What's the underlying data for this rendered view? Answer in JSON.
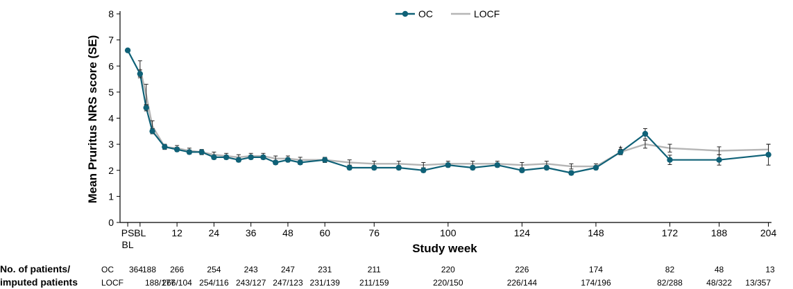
{
  "chart_data": {
    "type": "line",
    "xlabel": "Study week",
    "ylabel": "Mean Pruritus NRS score (SE)",
    "ylim": [
      0,
      8
    ],
    "yticks": [
      0,
      1,
      2,
      3,
      4,
      5,
      6,
      7,
      8
    ],
    "xticks": [
      {
        "label": "PS",
        "sublabel": "BL",
        "x": -4
      },
      {
        "label": "BL",
        "x": 0
      },
      {
        "label": "12",
        "x": 12
      },
      {
        "label": "24",
        "x": 24
      },
      {
        "label": "36",
        "x": 36
      },
      {
        "label": "48",
        "x": 48
      },
      {
        "label": "60",
        "x": 60
      },
      {
        "label": "76",
        "x": 76
      },
      {
        "label": "100",
        "x": 100
      },
      {
        "label": "124",
        "x": 124
      },
      {
        "label": "148",
        "x": 148
      },
      {
        "label": "172",
        "x": 172
      },
      {
        "label": "188",
        "x": 188
      },
      {
        "label": "204",
        "x": 204
      }
    ],
    "legend": {
      "placement": "top-center"
    },
    "annotations": [
      {
        "text": "*",
        "x": 156,
        "y": 2.85
      }
    ],
    "series": [
      {
        "name": "OC",
        "color": "#0f6177",
        "marker": "circle",
        "points": [
          {
            "x": -4,
            "y": 6.6,
            "se": 0.06
          },
          {
            "x": 0,
            "y": 5.7,
            "se": 0.15
          },
          {
            "x": 2,
            "y": 4.4,
            "se": 0.12
          },
          {
            "x": 4,
            "y": 3.5,
            "se": 0.1
          },
          {
            "x": 8,
            "y": 2.9,
            "se": 0.08
          },
          {
            "x": 12,
            "y": 2.8,
            "se": 0.08
          },
          {
            "x": 16,
            "y": 2.7,
            "se": 0.08
          },
          {
            "x": 20,
            "y": 2.7,
            "se": 0.08
          },
          {
            "x": 24,
            "y": 2.5,
            "se": 0.08
          },
          {
            "x": 28,
            "y": 2.5,
            "se": 0.08
          },
          {
            "x": 32,
            "y": 2.4,
            "se": 0.08
          },
          {
            "x": 36,
            "y": 2.5,
            "se": 0.08
          },
          {
            "x": 40,
            "y": 2.5,
            "se": 0.08
          },
          {
            "x": 44,
            "y": 2.3,
            "se": 0.08
          },
          {
            "x": 48,
            "y": 2.4,
            "se": 0.08
          },
          {
            "x": 52,
            "y": 2.3,
            "se": 0.08
          },
          {
            "x": 60,
            "y": 2.4,
            "se": 0.08
          },
          {
            "x": 68,
            "y": 2.1,
            "se": 0.08
          },
          {
            "x": 76,
            "y": 2.1,
            "se": 0.08
          },
          {
            "x": 84,
            "y": 2.1,
            "se": 0.08
          },
          {
            "x": 92,
            "y": 2.0,
            "se": 0.08
          },
          {
            "x": 100,
            "y": 2.2,
            "se": 0.08
          },
          {
            "x": 108,
            "y": 2.1,
            "se": 0.08
          },
          {
            "x": 116,
            "y": 2.2,
            "se": 0.08
          },
          {
            "x": 124,
            "y": 2.0,
            "se": 0.08
          },
          {
            "x": 132,
            "y": 2.1,
            "se": 0.08
          },
          {
            "x": 140,
            "y": 1.9,
            "se": 0.08
          },
          {
            "x": 148,
            "y": 2.1,
            "se": 0.08
          },
          {
            "x": 156,
            "y": 2.7,
            "se": 0.1
          },
          {
            "x": 164,
            "y": 3.4,
            "se": 0.2
          },
          {
            "x": 172,
            "y": 2.4,
            "se": 0.18
          },
          {
            "x": 188,
            "y": 2.4,
            "se": 0.2
          },
          {
            "x": 204,
            "y": 2.6,
            "se": 0.4
          }
        ]
      },
      {
        "name": "LOCF",
        "color": "#b5b5b5",
        "marker": "none",
        "points": [
          {
            "x": 0,
            "y": 5.9,
            "se": 0.3
          },
          {
            "x": 2,
            "y": 4.9,
            "se": 0.4
          },
          {
            "x": 4,
            "y": 3.7,
            "se": 0.2
          },
          {
            "x": 8,
            "y": 2.9,
            "se": 0.1
          },
          {
            "x": 12,
            "y": 2.85,
            "se": 0.1
          },
          {
            "x": 16,
            "y": 2.75,
            "se": 0.1
          },
          {
            "x": 20,
            "y": 2.7,
            "se": 0.1
          },
          {
            "x": 24,
            "y": 2.6,
            "se": 0.1
          },
          {
            "x": 28,
            "y": 2.55,
            "se": 0.1
          },
          {
            "x": 32,
            "y": 2.5,
            "se": 0.1
          },
          {
            "x": 36,
            "y": 2.55,
            "se": 0.1
          },
          {
            "x": 40,
            "y": 2.55,
            "se": 0.1
          },
          {
            "x": 44,
            "y": 2.45,
            "se": 0.1
          },
          {
            "x": 48,
            "y": 2.45,
            "se": 0.1
          },
          {
            "x": 52,
            "y": 2.4,
            "se": 0.1
          },
          {
            "x": 60,
            "y": 2.4,
            "se": 0.1
          },
          {
            "x": 68,
            "y": 2.3,
            "se": 0.1
          },
          {
            "x": 76,
            "y": 2.25,
            "se": 0.1
          },
          {
            "x": 84,
            "y": 2.25,
            "se": 0.1
          },
          {
            "x": 92,
            "y": 2.2,
            "se": 0.1
          },
          {
            "x": 100,
            "y": 2.25,
            "se": 0.1
          },
          {
            "x": 108,
            "y": 2.25,
            "se": 0.1
          },
          {
            "x": 116,
            "y": 2.25,
            "se": 0.1
          },
          {
            "x": 124,
            "y": 2.2,
            "se": 0.1
          },
          {
            "x": 132,
            "y": 2.25,
            "se": 0.1
          },
          {
            "x": 140,
            "y": 2.15,
            "se": 0.1
          },
          {
            "x": 148,
            "y": 2.15,
            "se": 0.1
          },
          {
            "x": 156,
            "y": 2.7,
            "se": 0.1
          },
          {
            "x": 164,
            "y": 3.0,
            "se": 0.15
          },
          {
            "x": 172,
            "y": 2.85,
            "se": 0.15
          },
          {
            "x": 188,
            "y": 2.75,
            "se": 0.15
          },
          {
            "x": 204,
            "y": 2.8,
            "se": 0.2
          }
        ]
      }
    ]
  },
  "patients_table": {
    "header_line1": "No. of patients/",
    "header_line2": "imputed patients",
    "rows": [
      {
        "label": "OC",
        "cells": [
          {
            "x": -4,
            "text": "364"
          },
          {
            "x": 0,
            "text": "188"
          },
          {
            "x": 12,
            "text": "266"
          },
          {
            "x": 24,
            "text": "254"
          },
          {
            "x": 36,
            "text": "243"
          },
          {
            "x": 48,
            "text": "247"
          },
          {
            "x": 60,
            "text": "231"
          },
          {
            "x": 76,
            "text": "211"
          },
          {
            "x": 100,
            "text": "220"
          },
          {
            "x": 124,
            "text": "226"
          },
          {
            "x": 148,
            "text": "174"
          },
          {
            "x": 172,
            "text": "82"
          },
          {
            "x": 188,
            "text": "48"
          },
          {
            "x": 204,
            "text": "13"
          }
        ]
      },
      {
        "label": "LOCF",
        "cells": [
          {
            "x": 0,
            "text": "188/177"
          },
          {
            "x": 12,
            "text": "266/104"
          },
          {
            "x": 24,
            "text": "254/116"
          },
          {
            "x": 36,
            "text": "243/127"
          },
          {
            "x": 48,
            "text": "247/123"
          },
          {
            "x": 60,
            "text": "231/139"
          },
          {
            "x": 76,
            "text": "211/159"
          },
          {
            "x": 100,
            "text": "220/150"
          },
          {
            "x": 124,
            "text": "226/144"
          },
          {
            "x": 148,
            "text": "174/196"
          },
          {
            "x": 172,
            "text": "82/288"
          },
          {
            "x": 188,
            "text": "48/322"
          },
          {
            "x": 204,
            "text": "13/357"
          }
        ]
      }
    ]
  }
}
